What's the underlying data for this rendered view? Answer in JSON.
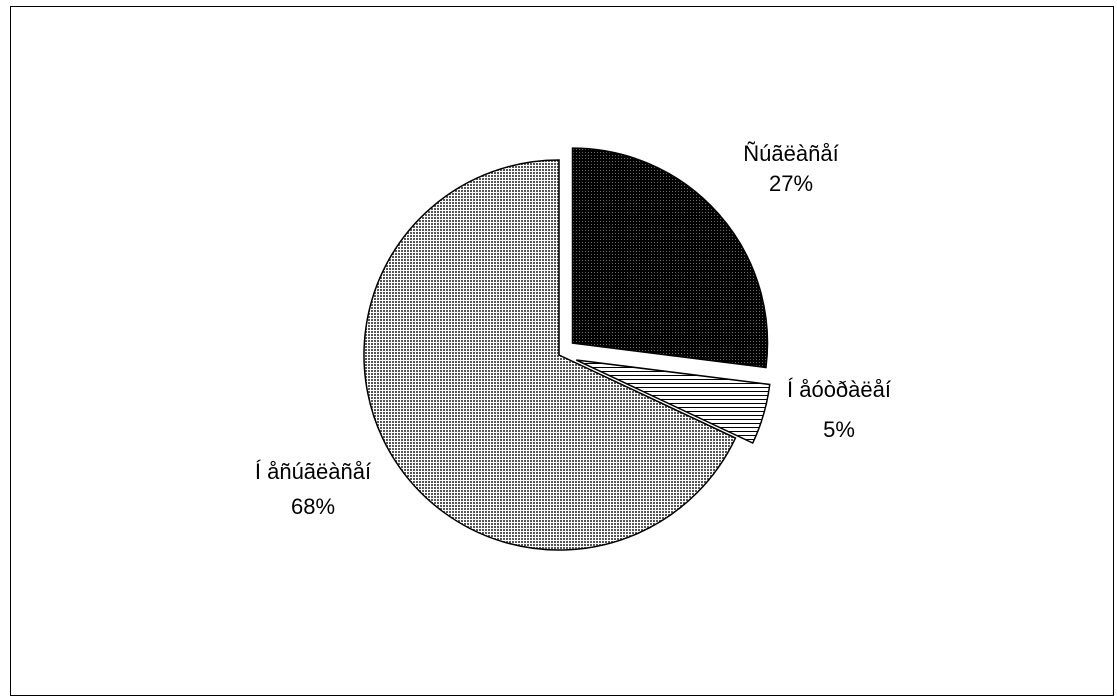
{
  "chart_data": {
    "type": "pie",
    "slices": [
      {
        "label": "Ñúãëàñåí",
        "value": 27,
        "value_label": "27%",
        "pattern": "dark",
        "exploded": true
      },
      {
        "label": "Í åóòðàëåí",
        "value": 5,
        "value_label": "5%",
        "pattern": "hatch",
        "exploded": true
      },
      {
        "label": "Í åñúãëàñåí",
        "value": 68,
        "value_label": "68%",
        "pattern": "dots",
        "exploded": false
      }
    ],
    "legend": "none",
    "colors": {
      "dark": "#1a1a1a",
      "dots": "#9a9a9a",
      "hatch": "#ffffff",
      "outline": "#000000"
    }
  }
}
